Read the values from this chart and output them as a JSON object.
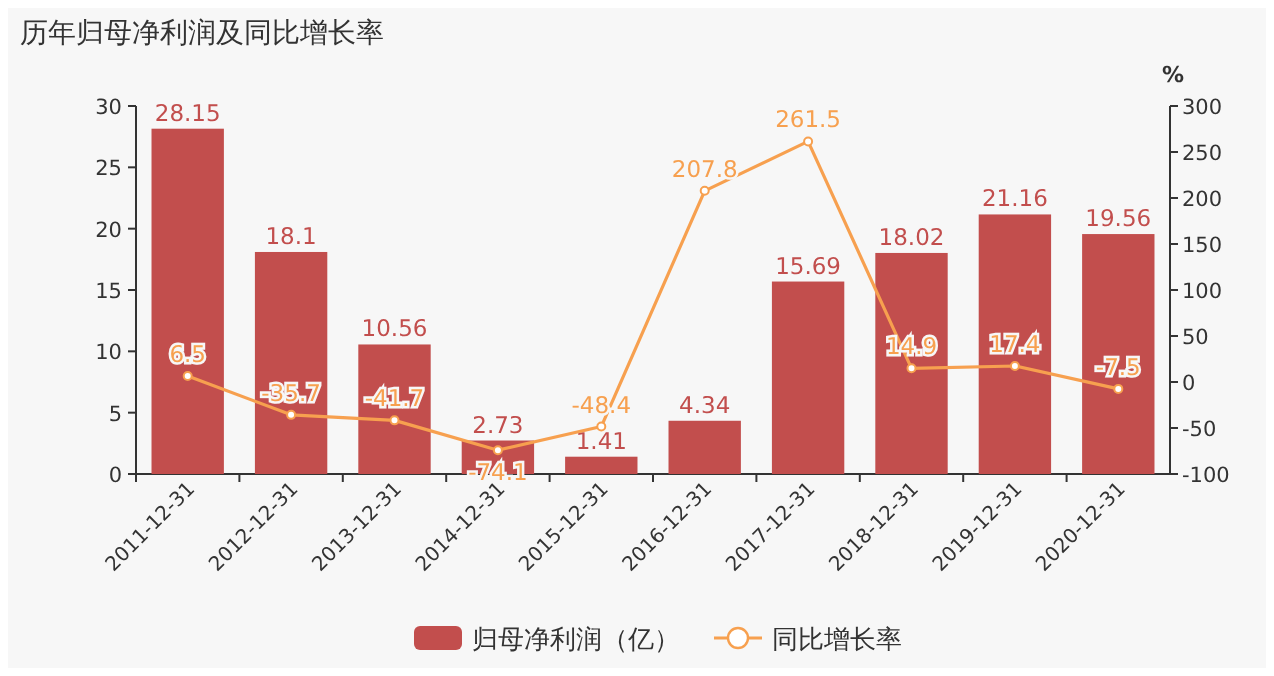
{
  "chart_data": {
    "type": "bar",
    "title": "历年归母净利润及同比增长率",
    "y2label": "%",
    "categories": [
      "2011-12-31",
      "2012-12-31",
      "2013-12-31",
      "2014-12-31",
      "2015-12-31",
      "2016-12-31",
      "2017-12-31",
      "2018-12-31",
      "2019-12-31",
      "2020-12-31"
    ],
    "series": [
      {
        "name": "归母净利润（亿）",
        "color": "#c24e4d",
        "values": [
          28.15,
          18.1,
          10.56,
          2.73,
          1.41,
          4.34,
          15.69,
          18.02,
          21.16,
          19.56
        ]
      },
      {
        "name": "同比增长率",
        "type": "line",
        "axis": "y2",
        "color": "#f7a04f",
        "marker": "circle",
        "values": [
          6.5,
          -35.7,
          -41.7,
          -74.1,
          -48.4,
          207.8,
          261.5,
          14.9,
          17.4,
          -7.5
        ]
      }
    ],
    "ylim": [
      0,
      30
    ],
    "yticks": [
      0,
      5,
      10,
      15,
      20,
      25,
      30
    ],
    "y2lim": [
      -100,
      300
    ],
    "y2ticks": [
      -100,
      -50,
      0,
      50,
      100,
      150,
      200,
      250,
      300
    ],
    "data_labels": true,
    "legend": "bottom",
    "grid": false
  }
}
